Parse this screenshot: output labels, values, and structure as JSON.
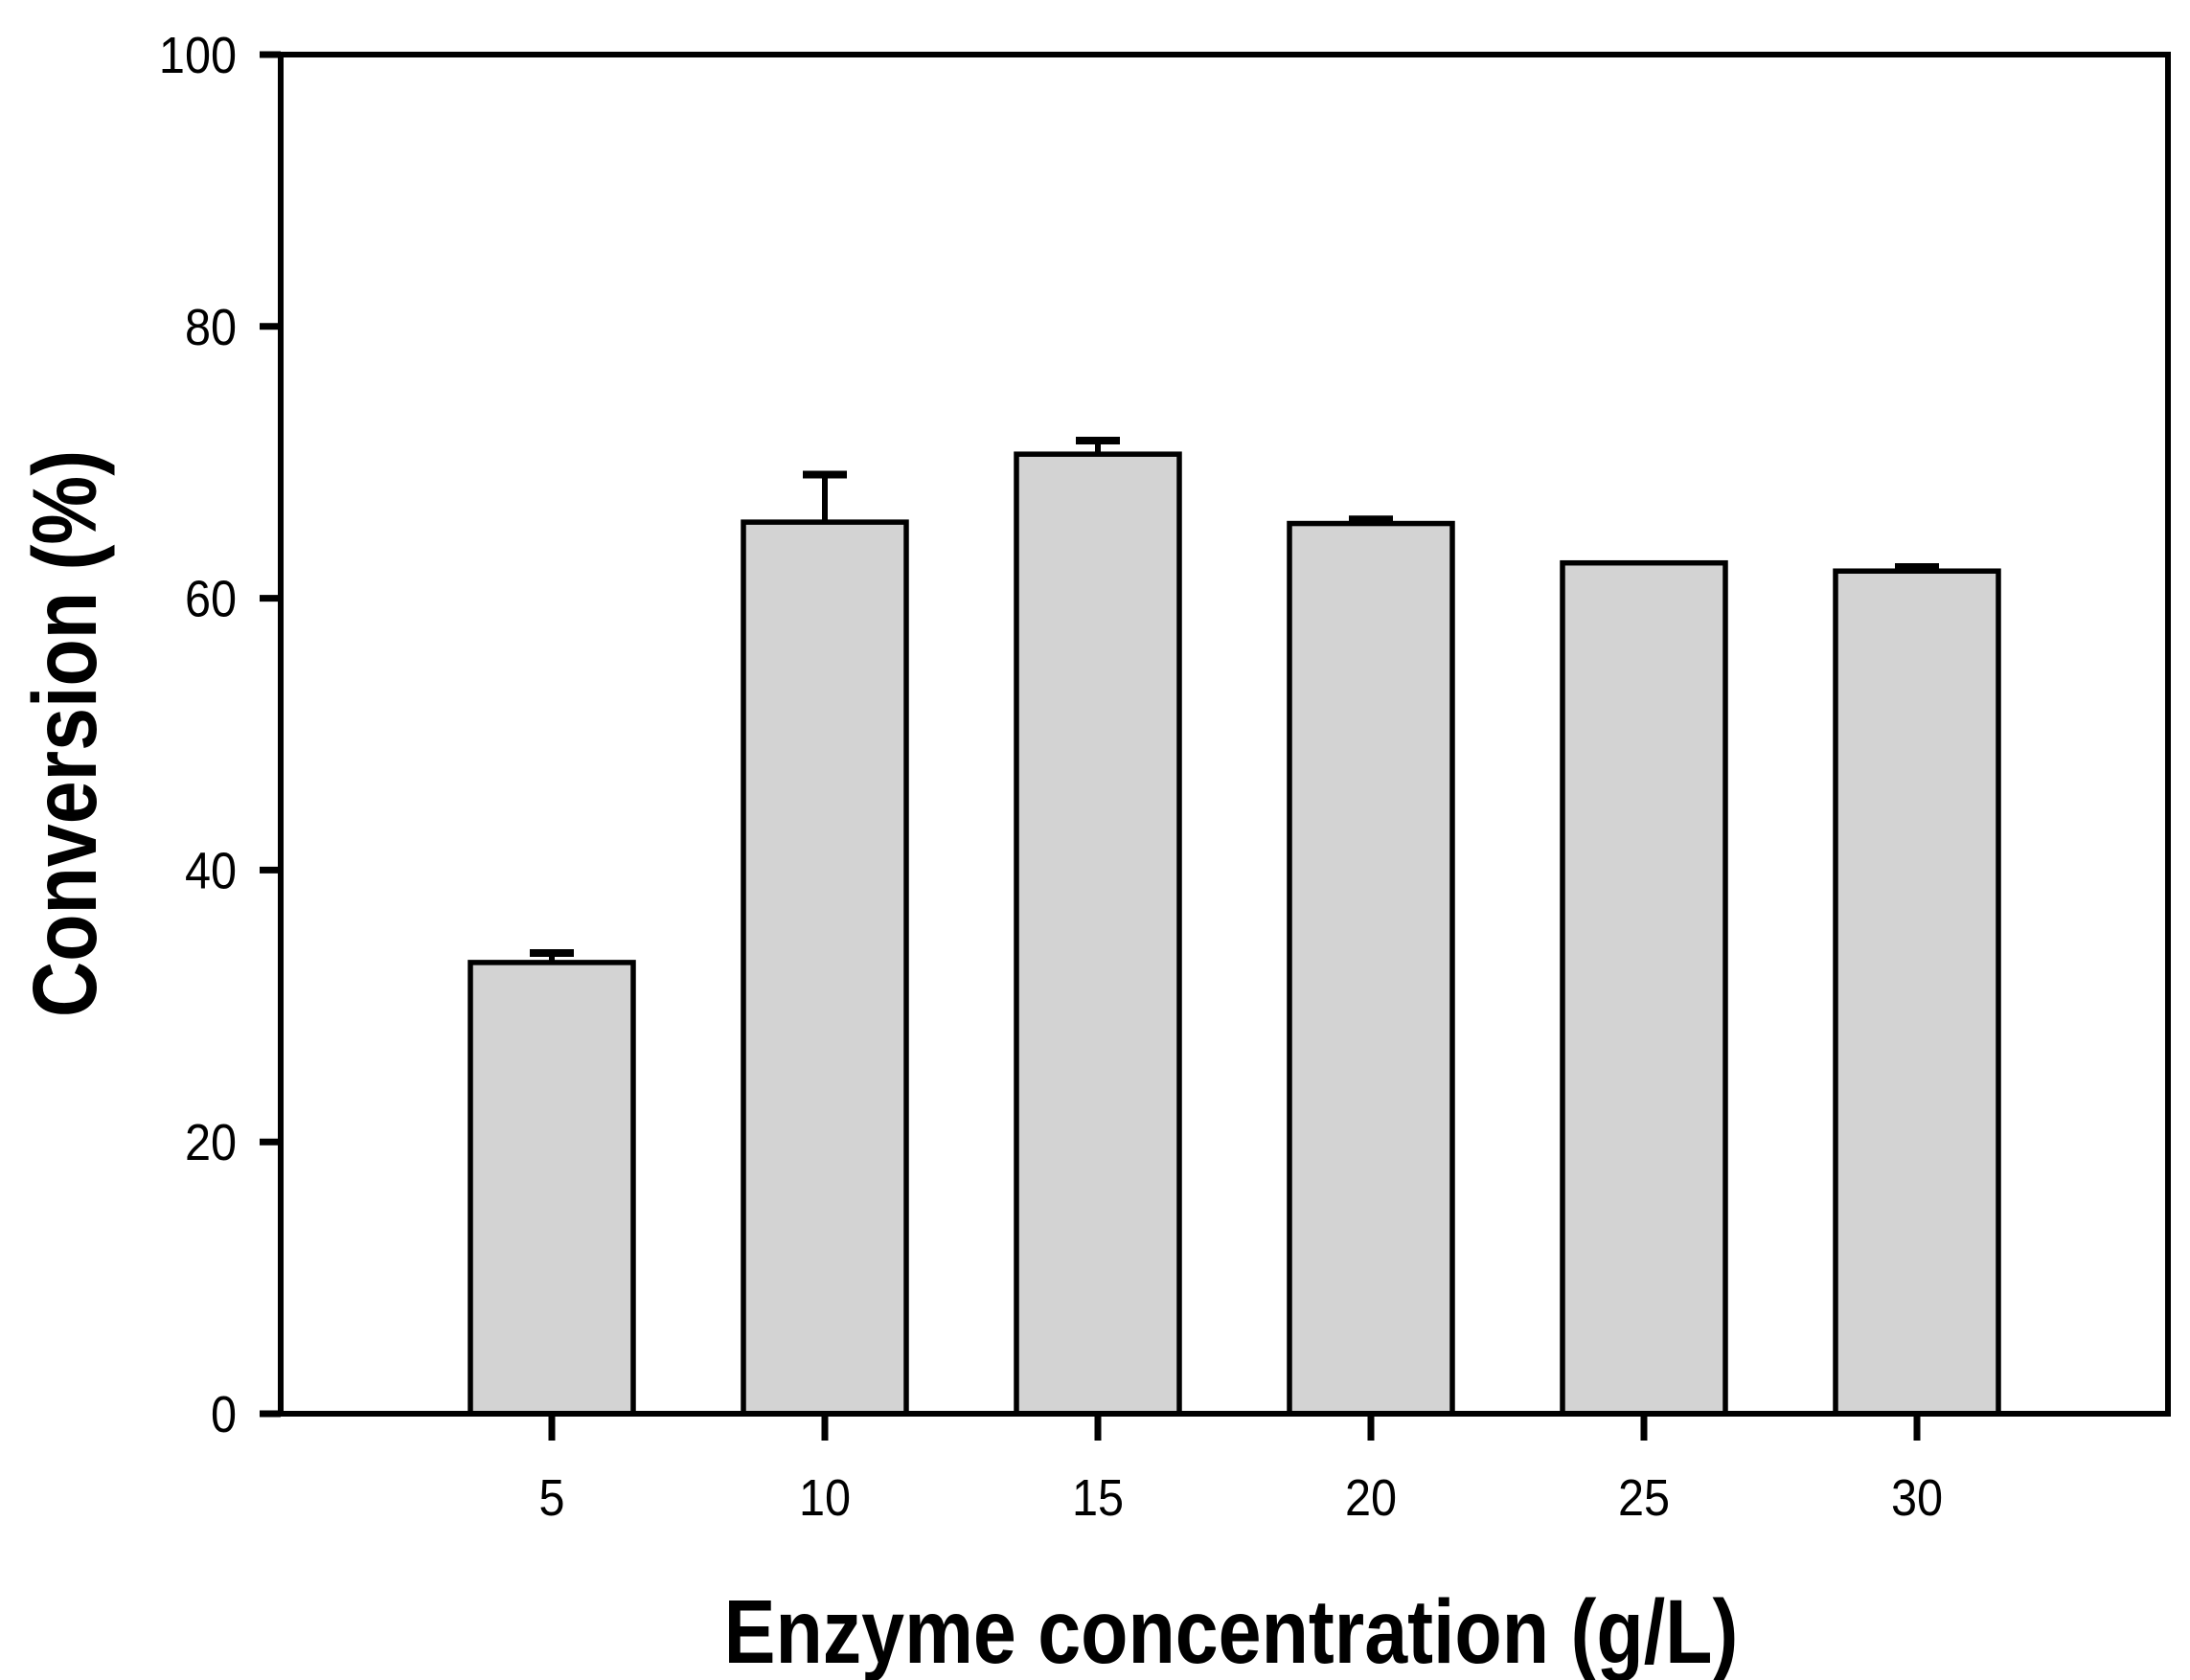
{
  "figure": {
    "background": "#ffffff"
  },
  "chart_data": {
    "type": "bar",
    "categories": [
      "5",
      "10",
      "15",
      "20",
      "25",
      "30"
    ],
    "values": [
      33.2,
      65.6,
      70.6,
      65.5,
      62.6,
      62.0
    ],
    "errors": [
      0.7,
      3.5,
      1.0,
      0.3,
      0,
      0.3
    ],
    "error_direction": "up",
    "title": "",
    "xlabel": "Enzyme concentration (g/L)",
    "ylabel": "Conversion (%)",
    "ylim": [
      0,
      100
    ],
    "yticks": [
      0,
      20,
      40,
      60,
      80,
      100
    ],
    "grid": false,
    "legend": null,
    "bar_fill": "#d3d3d3",
    "bar_stroke": "#000000",
    "axis_color": "#000000"
  }
}
